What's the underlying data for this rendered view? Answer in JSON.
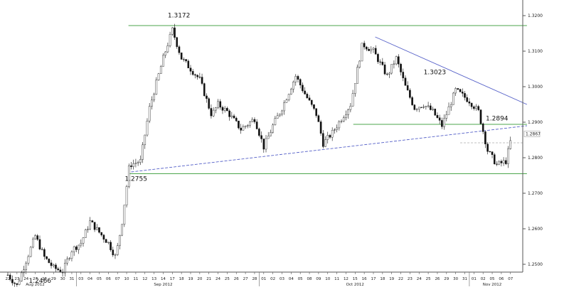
{
  "chart_data": {
    "type": "candlestick",
    "title": "",
    "xlabel": "",
    "ylabel": "",
    "ylim": [
      1.236,
      1.326
    ],
    "yticks": [
      "1.2400",
      "1.2500",
      "1.2600",
      "1.2700",
      "1.2800",
      "1.2900",
      "1.3000",
      "1.3100",
      "1.3200"
    ],
    "last_price": "1.2867",
    "x_day_labels": [
      "22",
      "23",
      "24",
      "27",
      "28",
      "29",
      "30",
      "31",
      "03",
      "04",
      "05",
      "06",
      "07",
      "10",
      "11",
      "12",
      "13",
      "14",
      "17",
      "18",
      "19",
      "20",
      "21",
      "24",
      "25",
      "26",
      "27",
      "28",
      "01",
      "02",
      "03",
      "04",
      "05",
      "08",
      "09",
      "10",
      "11",
      "12",
      "15",
      "16",
      "17",
      "18",
      "19",
      "22",
      "23",
      "24",
      "25",
      "26",
      "29",
      "30",
      "31",
      "01",
      "02",
      "05",
      "06",
      "07"
    ],
    "months": [
      {
        "label": "Aug 2012",
        "at_day": "27"
      },
      {
        "label": "Sep 2012",
        "at_day": "14"
      },
      {
        "label": "Oct 2012",
        "at_day": "15"
      },
      {
        "label": "Nov 2012",
        "at_day": "05"
      }
    ],
    "path": [
      [
        0,
        1.247
      ],
      [
        1,
        1.244
      ],
      [
        3,
        1.258
      ],
      [
        4,
        1.252
      ],
      [
        5,
        1.249
      ],
      [
        6,
        1.248
      ],
      [
        7,
        1.254
      ],
      [
        8,
        1.256
      ],
      [
        9,
        1.262
      ],
      [
        10,
        1.259
      ],
      [
        11,
        1.256
      ],
      [
        11.8,
        1.252
      ],
      [
        12.5,
        1.262
      ],
      [
        13.3,
        1.278
      ],
      [
        14.5,
        1.279
      ],
      [
        15.5,
        1.294
      ],
      [
        17,
        1.308
      ],
      [
        18,
        1.316
      ],
      [
        19,
        1.308
      ],
      [
        21,
        1.302
      ],
      [
        22.3,
        1.292
      ],
      [
        23,
        1.295
      ],
      [
        24,
        1.293
      ],
      [
        25.5,
        1.288
      ],
      [
        27,
        1.291
      ],
      [
        28,
        1.283
      ],
      [
        29,
        1.289
      ],
      [
        30,
        1.294
      ],
      [
        31.5,
        1.303
      ],
      [
        32.5,
        1.298
      ],
      [
        33.8,
        1.292
      ],
      [
        34.5,
        1.284
      ],
      [
        35.5,
        1.287
      ],
      [
        36.5,
        1.291
      ],
      [
        37.5,
        1.295
      ],
      [
        38.8,
        1.312
      ],
      [
        40,
        1.31
      ],
      [
        41.5,
        1.303
      ],
      [
        42.5,
        1.308
      ],
      [
        43.5,
        1.3
      ],
      [
        44.5,
        1.294
      ],
      [
        45.5,
        1.295
      ],
      [
        46.5,
        1.293
      ],
      [
        47.5,
        1.289
      ],
      [
        49,
        1.299
      ],
      [
        50.5,
        1.296
      ],
      [
        51.5,
        1.293
      ],
      [
        52.5,
        1.282
      ],
      [
        53.5,
        1.278
      ],
      [
        54.5,
        1.279
      ],
      [
        55.2,
        1.2867
      ]
    ],
    "annotations": [
      {
        "text": "1.3172",
        "day": 17.5,
        "price": 1.3195,
        "anchor": "start"
      },
      {
        "text": "1.2755",
        "day": 12.8,
        "price": 1.2735,
        "anchor": "start"
      },
      {
        "text": "1.2466",
        "day": 2.3,
        "price": 1.2448,
        "anchor": "start"
      },
      {
        "text": "1.3023",
        "day": 45.5,
        "price": 1.3035,
        "anchor": "start"
      },
      {
        "text": "1.2894",
        "day": 52.3,
        "price": 1.2905,
        "anchor": "start"
      }
    ],
    "support_resistance_lines": [
      {
        "price": 1.3172,
        "from_day": 13.2,
        "to_day": 56.8,
        "color": "#4da64d"
      },
      {
        "price": 1.2755,
        "from_day": 13.2,
        "to_day": 56.8,
        "color": "#4da64d"
      },
      {
        "price": 1.2894,
        "from_day": 37.8,
        "to_day": 56.8,
        "color": "#4da64d"
      }
    ],
    "trend_lines": [
      {
        "from": [
          40.2,
          1.314
        ],
        "to": [
          56.8,
          1.295
        ],
        "color": "#5560c8",
        "dashed": false
      },
      {
        "from": [
          13.5,
          1.276
        ],
        "to": [
          56.8,
          1.289
        ],
        "color": "#5560c8",
        "dashed": true
      }
    ],
    "aux_lines": [
      {
        "price": 1.2842,
        "from_day": 49.5,
        "to_day": 56.3,
        "color": "#aaaaaa",
        "dashed": true
      }
    ]
  }
}
